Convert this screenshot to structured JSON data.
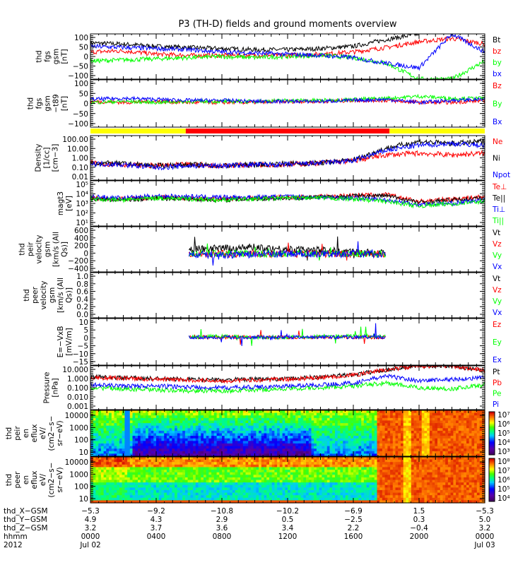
{
  "chart_data": {
    "type": "line",
    "title": "P3 (TH-D) fields and ground moments overview",
    "x_hours": [
      0,
      2,
      4,
      6,
      8,
      10,
      12,
      14,
      16,
      18,
      20,
      22,
      24
    ],
    "x_range_hours": [
      0,
      24
    ],
    "grid": false,
    "panels": [
      {
        "ylabel": [
          "thd",
          "fgs",
          "gsm",
          "[nT]"
        ],
        "scale": "linear",
        "ylim": [
          -100,
          100
        ],
        "yticks": [
          "100",
          "50",
          "0",
          "−50",
          "−100"
        ],
        "series": [
          {
            "name": "Bt",
            "color": "#000000",
            "values": [
              60,
              55,
              45,
              40,
              35,
              30,
              30,
              35,
              45,
              75,
              100,
              null,
              null
            ]
          },
          {
            "name": "bz",
            "color": "#ff0000",
            "values": [
              20,
              25,
              10,
              5,
              5,
              5,
              5,
              10,
              20,
              40,
              65,
              80,
              55
            ]
          },
          {
            "name": "by",
            "color": "#00ff00",
            "values": [
              -20,
              -15,
              -10,
              -5,
              0,
              -5,
              0,
              5,
              -5,
              -30,
              -100,
              -100,
              -20
            ]
          },
          {
            "name": "bx",
            "color": "#0000ff",
            "values": [
              45,
              40,
              35,
              30,
              20,
              15,
              10,
              5,
              -5,
              -30,
              -50,
              100,
              20
            ]
          }
        ]
      },
      {
        "ylabel": [
          "thd",
          "fgs",
          "gsm",
          "−t89",
          "[nT]"
        ],
        "scale": "linear",
        "ylim": [
          -120,
          110
        ],
        "yticks": [
          "100",
          "50",
          "0",
          "−50",
          "−100"
        ],
        "series": [
          {
            "name": "Bz",
            "color": "#ff0000",
            "values": [
              5,
              0,
              5,
              0,
              0,
              0,
              5,
              5,
              10,
              10,
              0,
              0,
              10
            ]
          },
          {
            "name": "By",
            "color": "#00ff00",
            "values": [
              0,
              5,
              0,
              5,
              5,
              5,
              10,
              10,
              15,
              20,
              30,
              20,
              20
            ]
          },
          {
            "name": "Bx",
            "color": "#0000ff",
            "values": [
              15,
              20,
              15,
              10,
              10,
              5,
              5,
              5,
              10,
              15,
              0,
              10,
              15
            ]
          }
        ]
      },
      {
        "ylabel": [
          "Density",
          "[1/cc]",
          "[cm−3]"
        ],
        "scale": "log",
        "ylim": [
          0.005,
          200
        ],
        "yticks": [
          "100.00",
          "10.00",
          "1.00",
          "0.10",
          "0.01"
        ],
        "series": [
          {
            "name": "Ne",
            "color": "#ff0000",
            "values": [
              0.3,
              0.2,
              0.15,
              0.2,
              0.15,
              0.2,
              0.2,
              0.3,
              0.5,
              2,
              3,
              2,
              3
            ]
          },
          {
            "name": "Ni",
            "color": "#000000",
            "values": [
              0.3,
              0.25,
              0.15,
              0.2,
              0.15,
              0.2,
              0.25,
              0.3,
              0.6,
              10,
              50,
              30,
              50
            ]
          },
          {
            "name": "Npot",
            "color": "#0000ff",
            "values": [
              0.25,
              0.2,
              0.1,
              0.15,
              0.15,
              0.2,
              0.2,
              0.3,
              0.5,
              6,
              20,
              30,
              20
            ]
          }
        ]
      },
      {
        "ylabel": [
          "magt3",
          "[eV]"
        ],
        "scale": "log",
        "ylim": [
          10,
          100000
        ],
        "yticks": [
          "10⁵",
          "10⁴",
          "10³",
          "10²",
          "10¹"
        ],
        "series": [
          {
            "name": "Te⊥",
            "color": "#ff0000",
            "values": [
              3000,
              2500,
              3500,
              3000,
              2500,
              3000,
              3500,
              4000,
              5000,
              6000,
              1500,
              2500,
              4000
            ]
          },
          {
            "name": "Te||",
            "color": "#000000",
            "values": [
              2500,
              2000,
              3000,
              2500,
              2000,
              2500,
              3000,
              3500,
              4500,
              5000,
              1200,
              2000,
              3000
            ]
          },
          {
            "name": "Ti⊥",
            "color": "#0000ff",
            "values": [
              4000,
              3000,
              4500,
              4000,
              3500,
              3500,
              4000,
              3500,
              3000,
              2000,
              800,
              1000,
              2000
            ]
          },
          {
            "name": "Ti||",
            "color": "#00ff00",
            "values": [
              2500,
              2000,
              3000,
              2500,
              2000,
              2500,
              3000,
              3000,
              2500,
              1500,
              600,
              900,
              1500
            ]
          }
        ]
      },
      {
        "ylabel": [
          "thd",
          "peir",
          "velocity",
          "gsm",
          "[km/s (All Qs)]"
        ],
        "scale": "linear",
        "ylim": [
          -400,
          600
        ],
        "yticks": [
          "600",
          "400",
          "200",
          "0",
          "−200",
          "−400"
        ],
        "time_window": [
          5.9,
          18
        ],
        "series": [
          {
            "name": "Vt",
            "color": "#000000",
            "values": [
              null,
              null,
              null,
              100,
              120,
              150,
              100,
              80,
              40,
              20,
              null,
              null,
              null
            ]
          },
          {
            "name": "Vz",
            "color": "#ff0000",
            "values": [
              null,
              null,
              null,
              0,
              0,
              0,
              0,
              0,
              0,
              0,
              null,
              null,
              null
            ]
          },
          {
            "name": "Vy",
            "color": "#00ff00",
            "values": [
              null,
              null,
              null,
              0,
              10,
              0,
              0,
              0,
              0,
              0,
              null,
              null,
              null
            ]
          },
          {
            "name": "Vx",
            "color": "#0000ff",
            "values": [
              null,
              null,
              null,
              -20,
              -20,
              -10,
              0,
              0,
              0,
              0,
              null,
              null,
              null
            ]
          }
        ]
      },
      {
        "ylabel": [
          "thd",
          "peer",
          "velocity",
          "gsm",
          "[km/s (All Qs)]"
        ],
        "scale": "linear",
        "ylim": [
          0,
          1
        ],
        "yticks": [
          "1.0",
          "0.8",
          "0.6",
          "0.4",
          "0.2",
          "0.0"
        ],
        "series": [
          {
            "name": "Vt",
            "color": "#000000",
            "values": []
          },
          {
            "name": "Vz",
            "color": "#ff0000",
            "values": []
          },
          {
            "name": "Vy",
            "color": "#00ff00",
            "values": []
          },
          {
            "name": "Vx",
            "color": "#0000ff",
            "values": []
          }
        ]
      },
      {
        "ylabel": [
          "E=−VxB",
          "[mV/m]"
        ],
        "scale": "linear",
        "ylim": [
          -15,
          10
        ],
        "yticks": [
          "10",
          "5",
          "0",
          "−5",
          "−10",
          "−15"
        ],
        "time_window": [
          5.9,
          18
        ],
        "series": [
          {
            "name": "Ez",
            "color": "#ff0000",
            "values": [
              null,
              null,
              null,
              0,
              0,
              0,
              0,
              0,
              0,
              0,
              null,
              null,
              null
            ]
          },
          {
            "name": "Ey",
            "color": "#00ff00",
            "values": [
              null,
              null,
              null,
              0,
              0.5,
              0,
              0,
              0.5,
              0.5,
              0.5,
              null,
              null,
              null
            ]
          },
          {
            "name": "Ex",
            "color": "#0000ff",
            "values": [
              null,
              null,
              null,
              0,
              0,
              0,
              0,
              0,
              0,
              0,
              null,
              null,
              null
            ]
          }
        ]
      },
      {
        "ylabel": [
          "Pressure",
          "[nPa]"
        ],
        "scale": "log",
        "ylim": [
          0.0007,
          15
        ],
        "yticks": [
          "10.000",
          "1.000",
          "0.100",
          "0.010",
          "0.001"
        ],
        "series": [
          {
            "name": "Pt",
            "color": "#000000",
            "values": [
              1.2,
              1,
              0.8,
              0.7,
              0.6,
              0.7,
              0.8,
              1.2,
              2,
              6,
              15,
              15,
              5
            ]
          },
          {
            "name": "Pb",
            "color": "#ff0000",
            "values": [
              1,
              0.9,
              0.7,
              0.6,
              0.5,
              0.6,
              0.7,
              1,
              1.8,
              6,
              15,
              15,
              5
            ]
          },
          {
            "name": "Pe",
            "color": "#00ff00",
            "values": [
              0.1,
              0.08,
              0.06,
              0.05,
              0.05,
              0.06,
              0.08,
              0.1,
              0.15,
              0.3,
              0.1,
              0.08,
              0.2
            ]
          },
          {
            "name": "Pi",
            "color": "#0000ff",
            "values": [
              0.2,
              0.15,
              0.15,
              0.12,
              0.1,
              0.12,
              0.15,
              0.2,
              0.3,
              1.5,
              0.5,
              0.7,
              1
            ]
          }
        ]
      }
    ],
    "spectrograms": [
      {
        "ylabel": [
          "thd",
          "peir",
          "en",
          "eflux",
          "eV/",
          "(cm2−s−",
          "sr−eV)"
        ],
        "yticks": [
          "10000",
          "1000",
          "100",
          "10"
        ],
        "colorbar_ticks": [
          "10⁷",
          "10⁶",
          "10⁵",
          "10⁴",
          "10³"
        ]
      },
      {
        "ylabel": [
          "thd",
          "peer",
          "en",
          "eflux",
          "eV/",
          "(cm2−s−",
          "sr−eV)"
        ],
        "yticks": [
          "10000",
          "1000",
          "100",
          "10"
        ],
        "colorbar_ticks": [
          "10⁸",
          "10⁷",
          "10⁶",
          "10⁵",
          "10⁴"
        ]
      }
    ],
    "flag_bar": {
      "colors": [
        "#ffff00",
        "#ff0000",
        "#ffff00"
      ],
      "segments_hours": [
        [
          0,
          5.8
        ],
        [
          5.8,
          18.2
        ],
        [
          18.2,
          24
        ]
      ]
    },
    "ephemeris": [
      {
        "label": "thd_X−GSM",
        "values": [
          "−5.3",
          "−9.2",
          "−10.8",
          "−10.2",
          "−6.9",
          "1.5",
          "−5.3"
        ]
      },
      {
        "label": "thd_Y−GSM",
        "values": [
          "4.9",
          "4.3",
          "2.9",
          "0.5",
          "−2.5",
          "0.3",
          "5.0"
        ]
      },
      {
        "label": "thd_Z−GSM",
        "values": [
          "3.2",
          "3.7",
          "3.6",
          "3.4",
          "2.2",
          "−0.4",
          "3.2"
        ]
      },
      {
        "label": "hhmm",
        "values": [
          "0000",
          "0400",
          "0800",
          "1200",
          "1600",
          "2000",
          "0000"
        ]
      }
    ],
    "date_row": {
      "label": "2012",
      "start": "Jul 02",
      "end": "Jul 03"
    }
  }
}
